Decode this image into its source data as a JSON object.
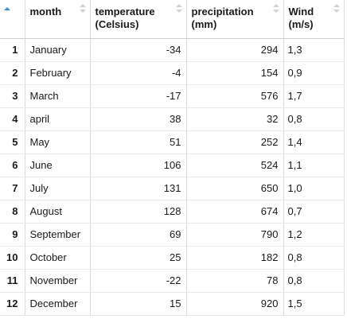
{
  "table": {
    "headers": {
      "month": "month",
      "temperature_line1": "temperature",
      "temperature_line2": "(Celsius)",
      "precipitation_line1": "precipitation",
      "precipitation_line2": "(mm)",
      "wind_line1": "Wind",
      "wind_line2": "(m/s)"
    },
    "sort_active_color": "#2f8fe0",
    "rows": [
      {
        "n": "1",
        "month": "January",
        "temperature": "-34",
        "precipitation": "294",
        "wind": "1,3"
      },
      {
        "n": "2",
        "month": "February",
        "temperature": "-4",
        "precipitation": "154",
        "wind": "0,9"
      },
      {
        "n": "3",
        "month": "March",
        "temperature": "-17",
        "precipitation": "576",
        "wind": "1,7"
      },
      {
        "n": "4",
        "month": "april",
        "temperature": "38",
        "precipitation": "32",
        "wind": "0,8"
      },
      {
        "n": "5",
        "month": "May",
        "temperature": "51",
        "precipitation": "252",
        "wind": "1,4"
      },
      {
        "n": "6",
        "month": "June",
        "temperature": "106",
        "precipitation": "524",
        "wind": "1,1"
      },
      {
        "n": "7",
        "month": "July",
        "temperature": "131",
        "precipitation": "650",
        "wind": "1,0"
      },
      {
        "n": "8",
        "month": "August",
        "temperature": "128",
        "precipitation": "674",
        "wind": "0,7"
      },
      {
        "n": "9",
        "month": "September",
        "temperature": "69",
        "precipitation": "790",
        "wind": "1,2"
      },
      {
        "n": "10",
        "month": "October",
        "temperature": "25",
        "precipitation": "182",
        "wind": "0,8"
      },
      {
        "n": "11",
        "month": "November",
        "temperature": "-22",
        "precipitation": "78",
        "wind": "0,8"
      },
      {
        "n": "12",
        "month": "December",
        "temperature": "15",
        "precipitation": "920",
        "wind": "1,5"
      }
    ]
  }
}
